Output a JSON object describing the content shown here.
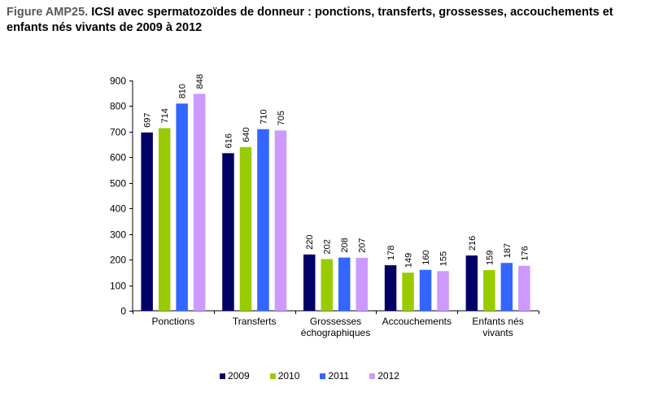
{
  "header": {
    "prefix": "Figure AMP25.",
    "title": "ICSI avec spermatozoïdes de donneur : ponctions, transferts, grossesses, accouchements et enfants nés vivants de 2009 à 2012"
  },
  "chart_data": {
    "type": "bar",
    "title": "ICSI avec spermatozoïdes de donneur : ponctions, transferts, grossesses, accouchements et enfants nés vivants de 2009 à 2012",
    "categories": [
      [
        "Ponctions"
      ],
      [
        "Transferts"
      ],
      [
        "Grossesses",
        "échographiques"
      ],
      [
        "Accouchements"
      ],
      [
        "Enfants nés",
        "vivants"
      ]
    ],
    "series": [
      {
        "name": "2009",
        "color": "#000066",
        "values": [
          697,
          616,
          220,
          178,
          216
        ]
      },
      {
        "name": "2010",
        "color": "#99CC00",
        "values": [
          714,
          640,
          202,
          149,
          159
        ]
      },
      {
        "name": "2011",
        "color": "#3366FF",
        "values": [
          810,
          710,
          208,
          160,
          187
        ]
      },
      {
        "name": "2012",
        "color": "#CC99FF",
        "values": [
          848,
          705,
          207,
          155,
          176
        ]
      }
    ],
    "ylim": [
      0,
      900
    ],
    "yticks": [
      0,
      100,
      200,
      300,
      400,
      500,
      600,
      700,
      800,
      900
    ],
    "grid": false,
    "legend_position": "bottom"
  }
}
